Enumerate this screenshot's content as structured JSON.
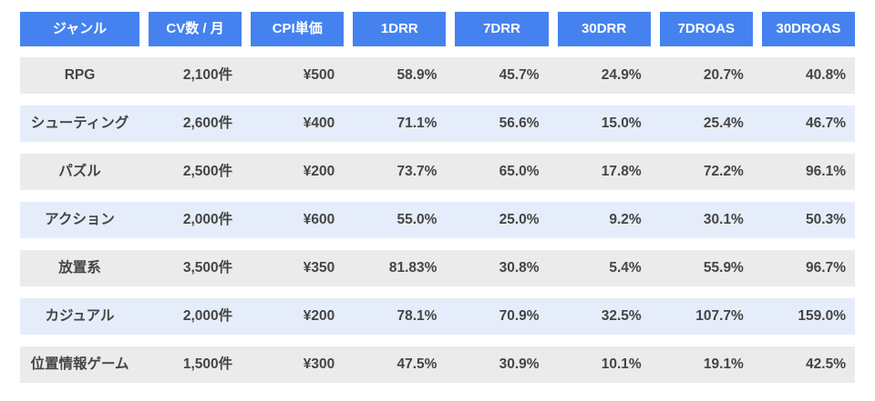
{
  "colors": {
    "header_bg": "#4582F0",
    "header_text": "#FFFFFF",
    "row_alt_gray": "#EBEBEB",
    "row_alt_blue": "#E6EDFA",
    "body_text": "#454545",
    "page_bg": "#FFFFFF"
  },
  "chart_data": {
    "type": "table",
    "title": "",
    "columns": [
      "ジャンル",
      "CV数 / 月",
      "CPI単価",
      "1DRR",
      "7DRR",
      "30DRR",
      "7DROAS",
      "30DROAS"
    ],
    "rows": [
      [
        "RPG",
        "2,100件",
        "¥500",
        "58.9%",
        "45.7%",
        "24.9%",
        "20.7%",
        "40.8%"
      ],
      [
        "シューティング",
        "2,600件",
        "¥400",
        "71.1%",
        "56.6%",
        "15.0%",
        "25.4%",
        "46.7%"
      ],
      [
        "パズル",
        "2,500件",
        "¥200",
        "73.7%",
        "65.0%",
        "17.8%",
        "72.2%",
        "96.1%"
      ],
      [
        "アクション",
        "2,000件",
        "¥600",
        "55.0%",
        "25.0%",
        "9.2%",
        "30.1%",
        "50.3%"
      ],
      [
        "放置系",
        "3,500件",
        "¥350",
        "81.83%",
        "30.8%",
        "5.4%",
        "55.9%",
        "96.7%"
      ],
      [
        "カジュアル",
        "2,000件",
        "¥200",
        "78.1%",
        "70.9%",
        "32.5%",
        "107.7%",
        "159.0%"
      ],
      [
        "位置情報ゲーム",
        "1,500件",
        "¥300",
        "47.5%",
        "30.9%",
        "10.1%",
        "19.1%",
        "42.5%"
      ]
    ],
    "rows_numeric": {
      "cv_per_month": [
        2100,
        2600,
        2500,
        2000,
        3500,
        2000,
        1500
      ],
      "cpi_yen": [
        500,
        400,
        200,
        600,
        350,
        200,
        300
      ],
      "drr_1d_pct": [
        58.9,
        71.1,
        73.7,
        55.0,
        81.83,
        78.1,
        47.5
      ],
      "drr_7d_pct": [
        45.7,
        56.6,
        65.0,
        25.0,
        30.8,
        70.9,
        30.9
      ],
      "drr_30d_pct": [
        24.9,
        15.0,
        17.8,
        9.2,
        5.4,
        32.5,
        10.1
      ],
      "droas_7d_pct": [
        20.7,
        25.4,
        72.2,
        30.1,
        55.9,
        107.7,
        19.1
      ],
      "droas_30d_pct": [
        40.8,
        46.7,
        96.1,
        50.3,
        96.7,
        159.0,
        42.5
      ]
    },
    "layout_hints": {
      "striped_rows": true,
      "stripe_pattern": [
        "gray",
        "blue"
      ],
      "genre_align": "center",
      "numeric_align": "right"
    }
  }
}
